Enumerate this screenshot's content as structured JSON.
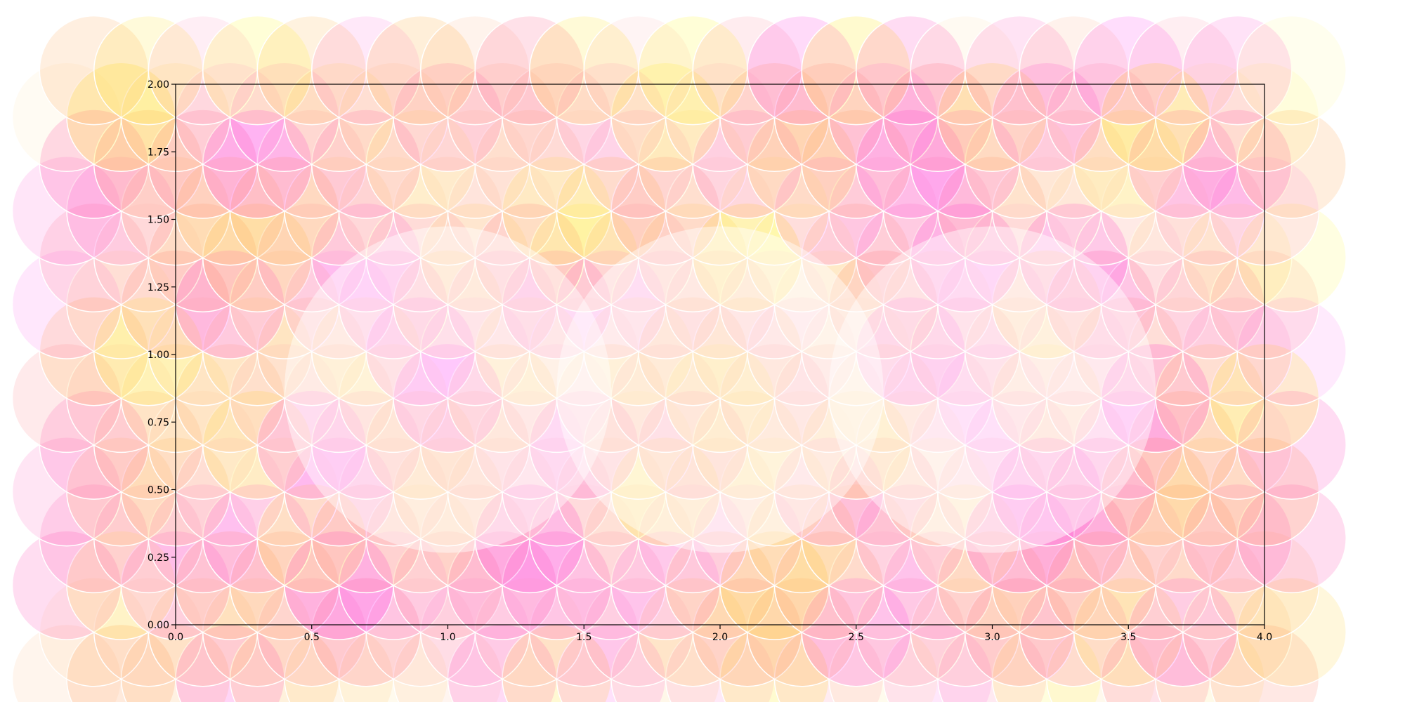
{
  "chart_data": {
    "type": "scatter",
    "title": "",
    "xlabel": "",
    "ylabel": "",
    "xlim": [
      0.0,
      4.0
    ],
    "ylim": [
      0.0,
      2.0
    ],
    "grid": false,
    "x_ticks": [
      "0.0",
      "0.5",
      "1.0",
      "1.5",
      "2.0",
      "2.5",
      "3.0",
      "3.5",
      "4.0"
    ],
    "y_ticks": [
      "0.00",
      "0.25",
      "0.50",
      "0.75",
      "1.00",
      "1.25",
      "1.50",
      "1.75",
      "2.00"
    ],
    "circle_radius": 0.2,
    "large_circle_radius": 0.6,
    "colormap": "spring",
    "lattice": {
      "x_start": -0.4,
      "x_step": 0.1,
      "x_count": 45,
      "y_start": -0.2,
      "y_step": 0.173205,
      "y_count": 14
    },
    "large_circles": [
      {
        "x": 1.0,
        "y": 0.87
      },
      {
        "x": 2.0,
        "y": 0.87
      },
      {
        "x": 3.0,
        "y": 0.87
      }
    ]
  }
}
